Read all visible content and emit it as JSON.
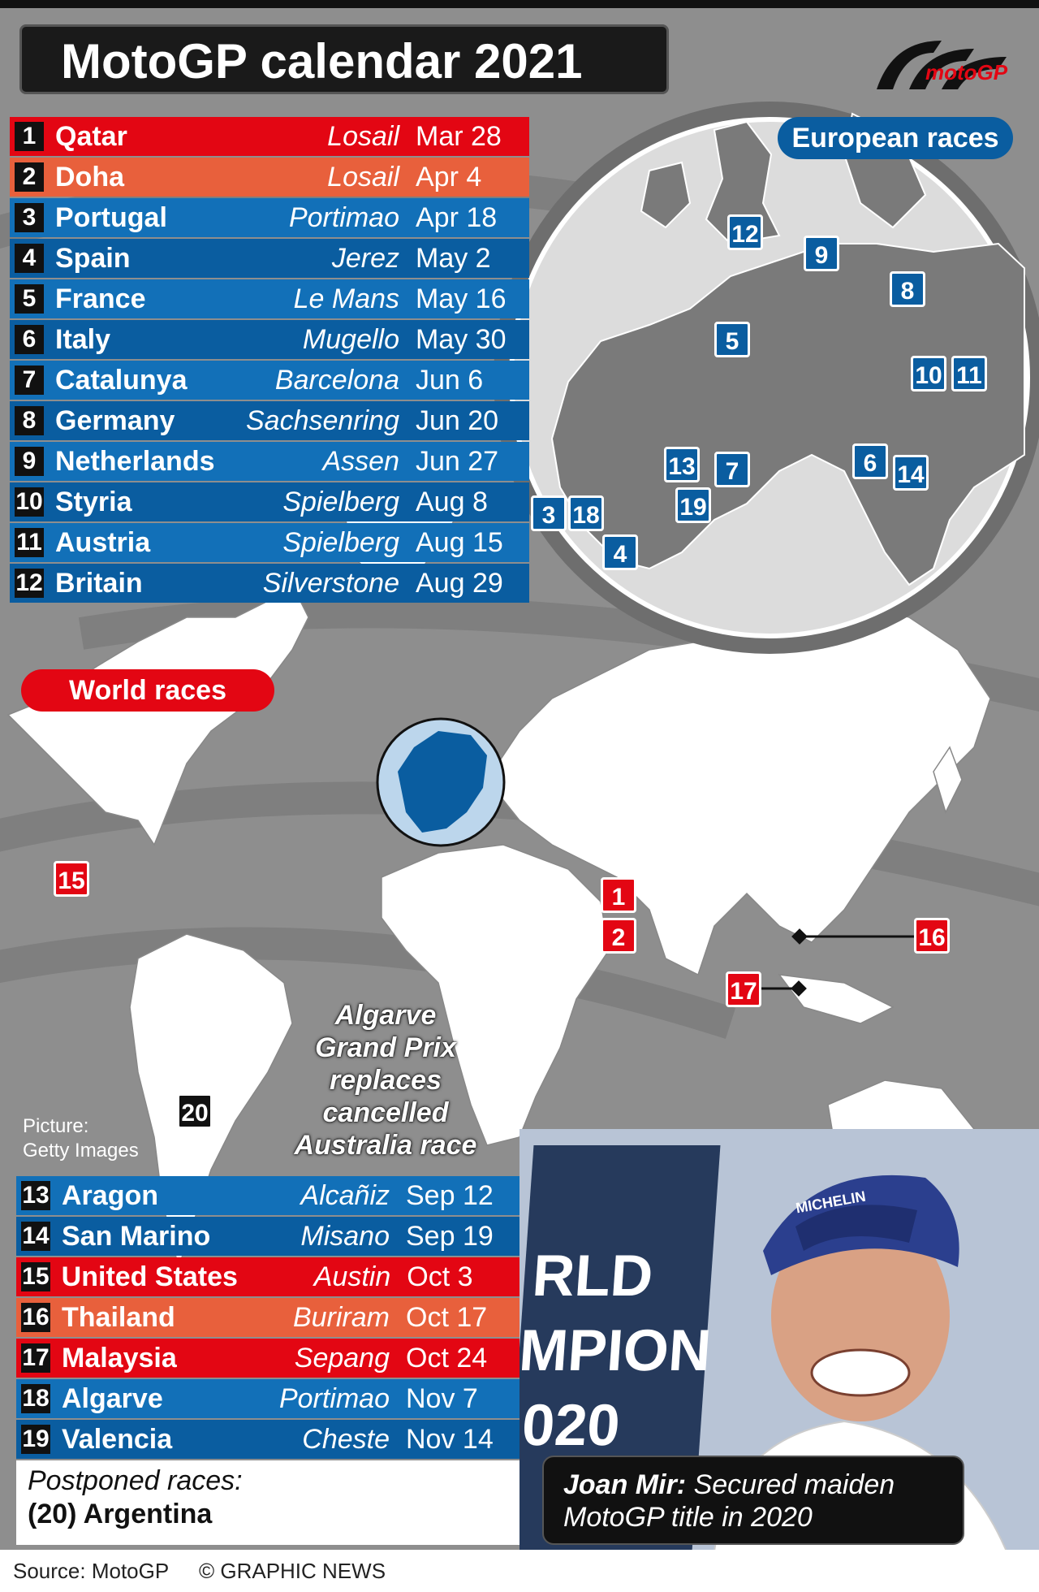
{
  "title": "MotoGP calendar 2021",
  "logo": "motoGP",
  "colors": {
    "red": "#e30613",
    "orange": "#e8603c",
    "blue": "#1270b8",
    "dark_blue": "#0a5da0",
    "ocean": "#8e8e8e"
  },
  "races_top": [
    {
      "num": "1",
      "country": "Qatar",
      "circuit": "Losail",
      "date": "Mar 28",
      "color": "red"
    },
    {
      "num": "2",
      "country": "Doha",
      "circuit": "Losail",
      "date": "Apr 4",
      "color": "orange"
    },
    {
      "num": "3",
      "country": "Portugal",
      "circuit": "Portimao",
      "date": "Apr 18",
      "color": "blue1"
    },
    {
      "num": "4",
      "country": "Spain",
      "circuit": "Jerez",
      "date": "May 2",
      "color": "blue2"
    },
    {
      "num": "5",
      "country": "France",
      "circuit": "Le Mans",
      "date": "May 16",
      "color": "blue1"
    },
    {
      "num": "6",
      "country": "Italy",
      "circuit": "Mugello",
      "date": "May 30",
      "color": "blue2"
    },
    {
      "num": "7",
      "country": "Catalunya",
      "circuit": "Barcelona",
      "date": "Jun 6",
      "color": "blue1"
    },
    {
      "num": "8",
      "country": "Germany",
      "circuit": "Sachsenring",
      "date": "Jun 20",
      "color": "blue2"
    },
    {
      "num": "9",
      "country": "Netherlands",
      "circuit": "Assen",
      "date": "Jun 27",
      "color": "blue1"
    },
    {
      "num": "10",
      "country": "Styria",
      "circuit": "Spielberg",
      "date": "Aug 8",
      "color": "blue2"
    },
    {
      "num": "11",
      "country": "Austria",
      "circuit": "Spielberg",
      "date": "Aug 15",
      "color": "blue1"
    },
    {
      "num": "12",
      "country": "Britain",
      "circuit": "Silverstone",
      "date": "Aug 29",
      "color": "blue2"
    }
  ],
  "races_bottom": [
    {
      "num": "13",
      "country": "Aragon",
      "circuit": "Alcañiz",
      "date": "Sep 12",
      "color": "blue1"
    },
    {
      "num": "14",
      "country": "San Marino",
      "circuit": "Misano",
      "date": "Sep 19",
      "color": "blue2"
    },
    {
      "num": "15",
      "country": "United States",
      "circuit": "Austin",
      "date": "Oct 3",
      "color": "red"
    },
    {
      "num": "16",
      "country": "Thailand",
      "circuit": "Buriram",
      "date": "Oct 17",
      "color": "orange"
    },
    {
      "num": "17",
      "country": "Malaysia",
      "circuit": "Sepang",
      "date": "Oct 24",
      "color": "red"
    },
    {
      "num": "18",
      "country": "Algarve",
      "circuit": "Portimao",
      "date": "Nov 7",
      "color": "blue1"
    },
    {
      "num": "19",
      "country": "Valencia",
      "circuit": "Cheste",
      "date": "Nov 14",
      "color": "blue2"
    }
  ],
  "european_label": "European races",
  "world_label": "World races",
  "note_lines": [
    "Algarve",
    "Grand Prix",
    "replaces",
    "cancelled",
    "Australia race"
  ],
  "picture_credit": [
    "Picture:",
    "Getty Images"
  ],
  "postponed_title": "Postponed races:",
  "postponed_item": "(20) Argentina",
  "caption_name": "Joan Mir:",
  "caption_text": " Secured maiden MotoGP title in 2020",
  "banner_lines": [
    "RLD",
    "MPION",
    "020"
  ],
  "cap_text": "MICHELIN",
  "footer_source": "Source: MotoGP",
  "footer_copy": "© GRAPHIC NEWS",
  "euro_markers": [
    {
      "label": "12",
      "color": "blue"
    },
    {
      "label": "9",
      "color": "blue"
    },
    {
      "label": "8",
      "color": "blue"
    },
    {
      "label": "5",
      "color": "blue"
    },
    {
      "label": "10",
      "color": "blue"
    },
    {
      "label": "11",
      "color": "blue"
    },
    {
      "label": "13",
      "color": "blue"
    },
    {
      "label": "7",
      "color": "blue"
    },
    {
      "label": "6",
      "color": "blue"
    },
    {
      "label": "14",
      "color": "blue"
    },
    {
      "label": "19",
      "color": "blue"
    },
    {
      "label": "3",
      "color": "blue"
    },
    {
      "label": "18",
      "color": "blue"
    },
    {
      "label": "4",
      "color": "blue"
    }
  ],
  "world_markers": [
    {
      "label": "15",
      "color": "red"
    },
    {
      "label": "1",
      "color": "red"
    },
    {
      "label": "2",
      "color": "red"
    },
    {
      "label": "16",
      "color": "red"
    },
    {
      "label": "17",
      "color": "red"
    },
    {
      "label": "20",
      "color": "black"
    }
  ]
}
